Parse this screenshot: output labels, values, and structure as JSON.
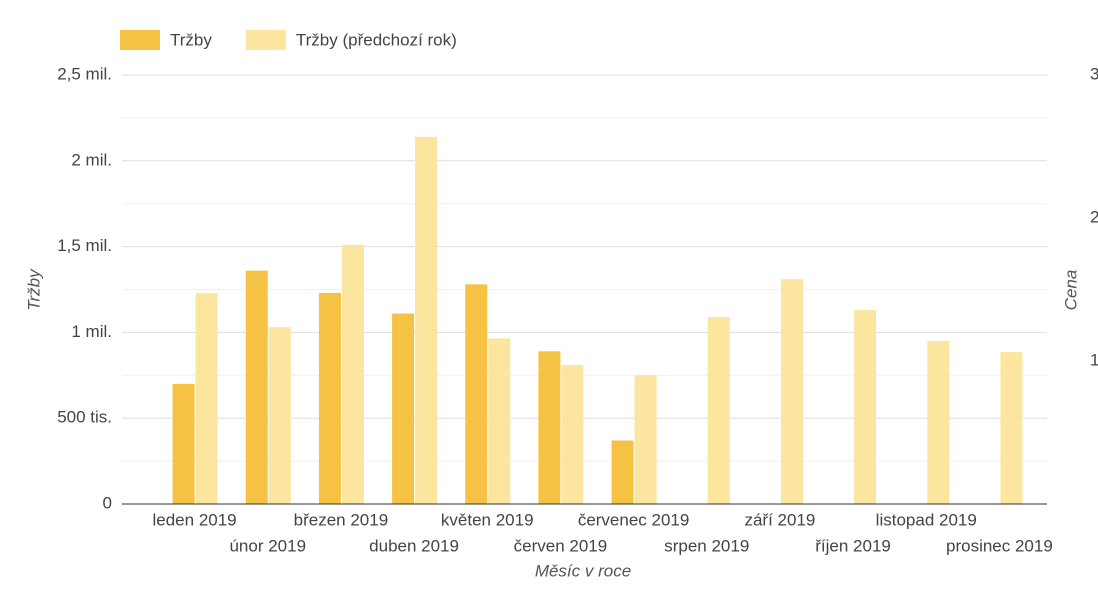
{
  "chart_data": {
    "type": "bar",
    "categories": [
      "leden 2019",
      "únor 2019",
      "březen 2019",
      "duben 2019",
      "květen 2019",
      "červen 2019",
      "červenec 2019",
      "srpen 2019",
      "září 2019",
      "říjen 2019",
      "listopad 2019",
      "prosinec 2019"
    ],
    "series": [
      {
        "name": "Tržby",
        "color": "#f6c244",
        "values": [
          700000,
          1360000,
          1230000,
          1110000,
          1280000,
          890000,
          370000,
          null,
          null,
          null,
          null,
          null
        ]
      },
      {
        "name": "Tržby (předchozí rok)",
        "color": "#fce59f",
        "values": [
          1230000,
          1030000,
          1510000,
          2140000,
          965000,
          810000,
          750000,
          1090000,
          1310000,
          1130000,
          950000,
          885000
        ]
      }
    ],
    "x_label": "Měsíc v roce",
    "y_label": "Tržby",
    "y2_label": "Cena",
    "ylim": [
      0,
      2500000
    ],
    "yticks": [
      0,
      {
        "value": 500000,
        "label": "500 tis."
      },
      {
        "value": 1000000,
        "label": "1 mil."
      },
      {
        "value": 1500000,
        "label": "1,5 mil."
      },
      {
        "value": 2000000,
        "label": "2 mil."
      },
      {
        "value": 2500000,
        "label": "2,5 mil."
      }
    ],
    "y2lim": [
      0,
      3
    ],
    "y2ticks": [
      1,
      2,
      3
    ],
    "grid": true,
    "legend": "top-left"
  }
}
